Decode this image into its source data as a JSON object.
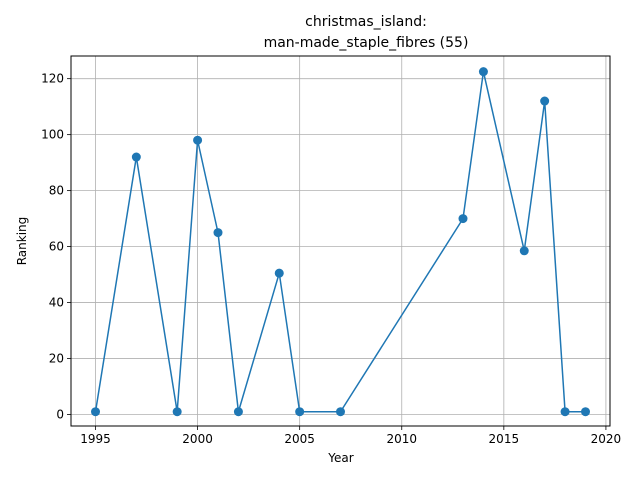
{
  "chart_data": {
    "type": "line",
    "title_lines": [
      "christmas_island:",
      "man-made_staple_fibres (55)"
    ],
    "xlabel": "Year",
    "ylabel": "Ranking",
    "xlim": [
      1993.8,
      2020.2
    ],
    "ylim": [
      -4.1,
      128.1
    ],
    "xticks": [
      1995,
      2000,
      2005,
      2010,
      2015,
      2020
    ],
    "yticks": [
      0,
      20,
      40,
      60,
      80,
      100,
      120
    ],
    "grid": true,
    "legend": "none",
    "series": [
      {
        "color": "#1f77b4",
        "marker": "circle",
        "x": [
          1995,
          1997,
          1999,
          2000,
          2001,
          2002,
          2004,
          2005,
          2007,
          2013,
          2014,
          2016,
          2017,
          2018,
          2019
        ],
        "y": [
          1,
          92,
          1,
          98,
          65,
          1,
          50.5,
          1,
          1,
          70,
          122.5,
          58.5,
          112,
          1,
          1
        ]
      }
    ]
  }
}
